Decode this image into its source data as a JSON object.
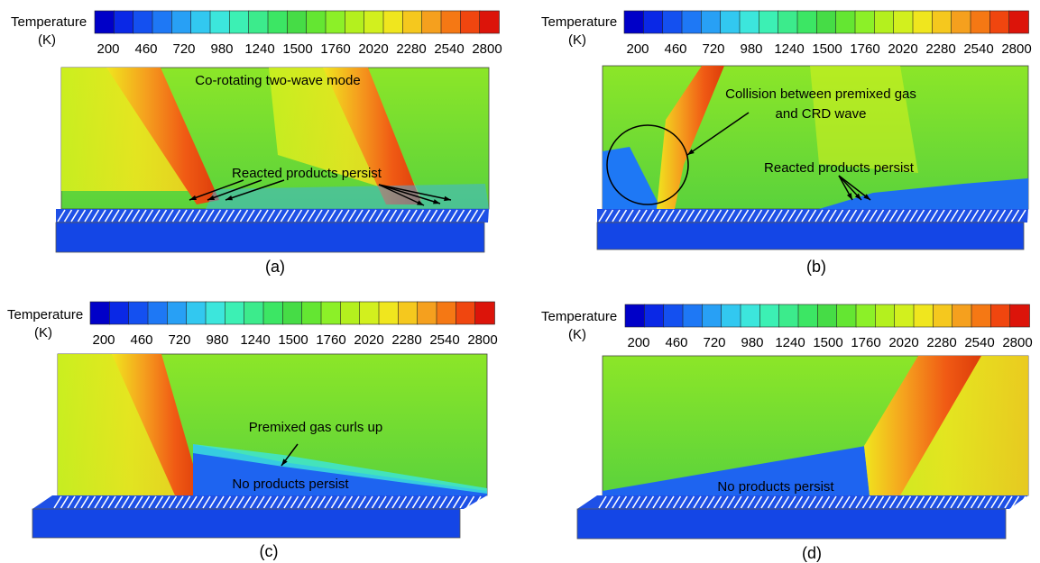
{
  "panels": [
    {
      "label": "(a)",
      "colorbar": {
        "title": "Temperature",
        "unit": "(K)",
        "ticks": [
          200,
          460,
          720,
          980,
          1240,
          1500,
          1760,
          2020,
          2280,
          2540,
          2800
        ]
      },
      "annotations": [
        "Co-rotating two-wave mode",
        "Reacted products persist"
      ]
    },
    {
      "label": "(b)",
      "colorbar": {
        "title": "Temperature",
        "unit": "(K)",
        "ticks": [
          200,
          460,
          720,
          980,
          1240,
          1500,
          1760,
          2020,
          2280,
          2540,
          2800
        ]
      },
      "annotations": [
        "Collision between premixed gas",
        "and CRD wave",
        "Reacted products persist"
      ]
    },
    {
      "label": "(c)",
      "colorbar": {
        "title": "Temperature",
        "unit": "(K)",
        "ticks": [
          200,
          460,
          720,
          980,
          1240,
          1500,
          1760,
          2020,
          2280,
          2540,
          2800
        ]
      },
      "annotations": [
        "Premixed gas curls up",
        "No products persist"
      ]
    },
    {
      "label": "(d)",
      "colorbar": {
        "title": "Temperature",
        "unit": "(K)",
        "ticks": [
          200,
          460,
          720,
          980,
          1240,
          1500,
          1760,
          2020,
          2280,
          2540,
          2800
        ]
      },
      "annotations": [
        "No products persist"
      ]
    }
  ]
}
